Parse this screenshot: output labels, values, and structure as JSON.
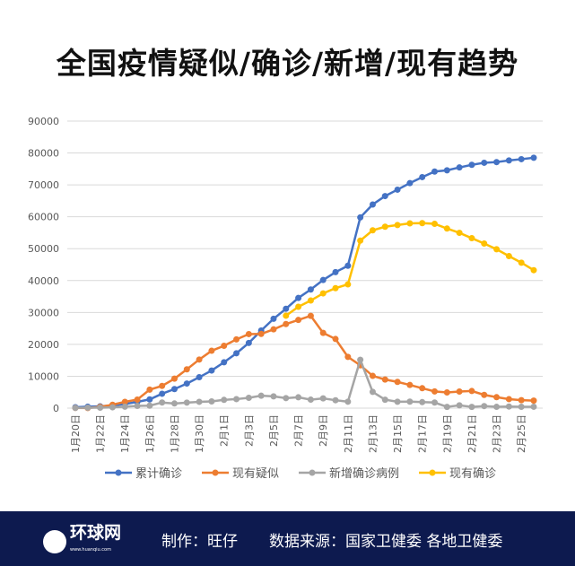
{
  "title": "全国疫情疑似/确诊/新增/现有趋势",
  "footer": {
    "logo_text": "环球网",
    "logo_url": "www.huanqiu.com",
    "credit": "制作：旺仔",
    "source": "数据来源：国家卫健委 各地卫健委",
    "bg": "#0d1a4f"
  },
  "chart_data": {
    "type": "line",
    "ylim": [
      0,
      90000
    ],
    "yticks": [
      0,
      10000,
      20000,
      30000,
      40000,
      50000,
      60000,
      70000,
      80000,
      90000
    ],
    "grid": true,
    "legend": "bottom",
    "categories": [
      "1月20日",
      "1月21日",
      "1月22日",
      "1月23日",
      "1月24日",
      "1月25日",
      "1月26日",
      "1月27日",
      "1月28日",
      "1月29日",
      "1月30日",
      "1月31日",
      "2月1日",
      "2月2日",
      "2月3日",
      "2月4日",
      "2月5日",
      "2月6日",
      "2月7日",
      "2月8日",
      "2月9日",
      "2月10日",
      "2月11日",
      "2月12日",
      "2月13日",
      "2月14日",
      "2月15日",
      "2月16日",
      "2月17日",
      "2月18日",
      "2月19日",
      "2月20日",
      "2月21日",
      "2月22日",
      "2月23日",
      "2月24日",
      "2月25日",
      "2月26日"
    ],
    "xtick_labels": [
      "1月20日",
      "1月22日",
      "1月24日",
      "1月26日",
      "1月28日",
      "1月30日",
      "2月1日",
      "2月3日",
      "2月5日",
      "2月7日",
      "2月9日",
      "2月11日",
      "2月13日",
      "2月15日",
      "2月17日",
      "2月19日",
      "2月21日",
      "2月23日",
      "2月25日"
    ],
    "series": [
      {
        "name": "累计确诊",
        "color": "#4472c4",
        "values": [
          291,
          440,
          571,
          830,
          1287,
          1975,
          2744,
          4515,
          5974,
          7711,
          9692,
          11791,
          14380,
          17205,
          20438,
          24324,
          28018,
          31161,
          34546,
          37198,
          40171,
          42638,
          44653,
          59804,
          63851,
          66492,
          68500,
          70548,
          72436,
          74185,
          74576,
          75465,
          76288,
          76936,
          77150,
          77658,
          78064,
          78497
        ]
      },
      {
        "name": "现有疑似",
        "color": "#ed7d31",
        "values": [
          54,
          37,
          393,
          1072,
          1965,
          2684,
          5794,
          6973,
          9239,
          12167,
          15238,
          17988,
          19544,
          21558,
          23214,
          23260,
          24702,
          26359,
          27657,
          28942,
          23589,
          21675,
          16067,
          13435,
          10109,
          8969,
          8228,
          7264,
          6242,
          5248,
          4922,
          5206,
          5365,
          4148,
          3434,
          2824,
          2491,
          2358
        ]
      },
      {
        "name": "新增确诊病例",
        "color": "#a5a5a5",
        "values": [
          77,
          149,
          131,
          259,
          444,
          688,
          769,
          1771,
          1459,
          1737,
          1982,
          2102,
          2590,
          2829,
          3235,
          3887,
          3694,
          3143,
          3399,
          2656,
          3062,
          2478,
          2015,
          15152,
          5090,
          2641,
          2009,
          2048,
          1886,
          1749,
          394,
          889,
          397,
          648,
          409,
          508,
          406,
          433
        ]
      },
      {
        "name": "现有确诊",
        "color": "#ffc000",
        "values": [
          null,
          null,
          null,
          null,
          null,
          null,
          null,
          null,
          null,
          null,
          null,
          null,
          null,
          null,
          null,
          null,
          null,
          28985,
          31774,
          33738,
          35982,
          37626,
          38800,
          52526,
          55748,
          56873,
          57416,
          57934,
          58016,
          57805,
          56303,
          54965,
          53284,
          51606,
          49824,
          47672,
          45604,
          43258
        ]
      }
    ]
  }
}
